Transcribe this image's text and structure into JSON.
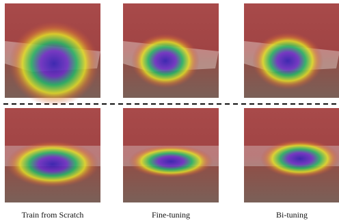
{
  "captions": [
    "Train from Scratch",
    "Fine-tuning",
    "Bi-tuning"
  ]
}
